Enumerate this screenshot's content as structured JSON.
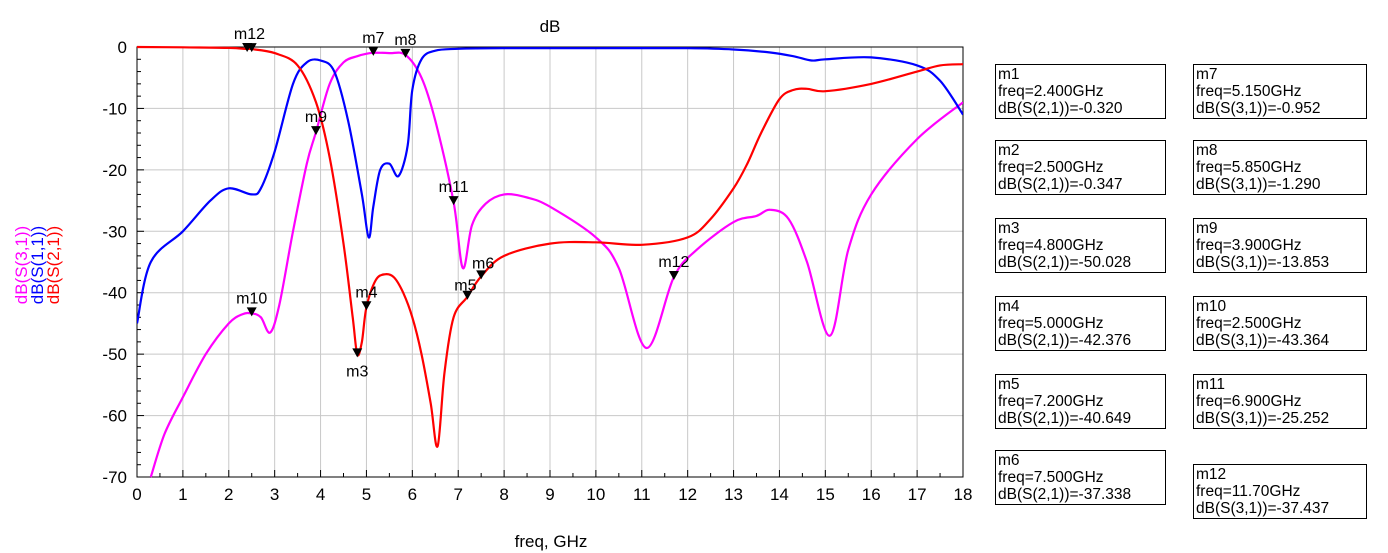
{
  "chart_data": {
    "type": "line",
    "title": "dB",
    "xlabel": "freq, GHz",
    "xlim": [
      0,
      18
    ],
    "ylim": [
      -70,
      0
    ],
    "xticks": [
      0,
      1,
      2,
      3,
      4,
      5,
      6,
      7,
      8,
      9,
      10,
      11,
      12,
      13,
      14,
      15,
      16,
      17,
      18
    ],
    "yticks": [
      0,
      -10,
      -20,
      -30,
      -40,
      -50,
      -60,
      -70
    ],
    "grid": true,
    "ylabels": [
      {
        "text": "dB(S(3,1))",
        "color": "#ff00ff"
      },
      {
        "text": "dB(S(1,1))",
        "color": "#0000ff"
      },
      {
        "text": "dB(S(2,1))",
        "color": "#ff0000"
      }
    ],
    "series": [
      {
        "name": "dB(S(2,1))",
        "color": "#ff0000",
        "x": [
          0,
          1,
          2,
          2.4,
          2.5,
          3,
          3.5,
          3.9,
          4.2,
          4.5,
          4.7,
          4.8,
          4.9,
          5,
          5.2,
          5.4,
          5.6,
          5.8,
          6.0,
          6.2,
          6.4,
          6.55,
          6.7,
          6.9,
          7.2,
          7.5,
          8,
          9,
          10,
          11,
          12,
          12.5,
          13,
          13.3,
          13.6,
          14,
          14.3,
          14.6,
          15,
          16,
          17,
          17.5,
          18
        ],
        "y": [
          0,
          -0.05,
          -0.15,
          -0.32,
          -0.347,
          -1,
          -3,
          -9,
          -18,
          -32,
          -44,
          -50.028,
          -48,
          -42.376,
          -38,
          -37,
          -37.5,
          -40,
          -44,
          -50,
          -58,
          -65,
          -53,
          -44,
          -40.649,
          -37.338,
          -34,
          -32,
          -31.8,
          -32.2,
          -31,
          -28,
          -23,
          -19,
          -14,
          -8.5,
          -7,
          -6.8,
          -7.2,
          -6,
          -4,
          -3,
          -2.8
        ]
      },
      {
        "name": "dB(S(1,1))",
        "color": "#0000ff",
        "x": [
          0,
          0.3,
          1,
          1.6,
          2,
          2.5,
          2.7,
          3.0,
          3.4,
          3.7,
          4.0,
          4.3,
          4.6,
          4.9,
          5.05,
          5.15,
          5.3,
          5.5,
          5.7,
          5.9,
          6.0,
          6.2,
          6.5,
          7,
          8,
          10,
          12,
          13,
          13.8,
          14.3,
          14.7,
          15,
          16,
          17,
          17.5,
          18
        ],
        "y": [
          -45,
          -35,
          -30,
          -25,
          -23,
          -24,
          -23,
          -17,
          -6,
          -2.5,
          -2.2,
          -4,
          -12,
          -24,
          -31,
          -26,
          -20,
          -19,
          -21,
          -16,
          -7,
          -2,
          -0.6,
          -0.3,
          -0.2,
          -0.2,
          -0.2,
          -0.4,
          -0.9,
          -1.5,
          -2.2,
          -2,
          -1.7,
          -3,
          -5.5,
          -11
        ]
      },
      {
        "name": "dB(S(3,1))",
        "color": "#ff00ff",
        "x": [
          0.3,
          0.6,
          1,
          1.5,
          2,
          2.3,
          2.5,
          2.7,
          2.9,
          3.1,
          3.4,
          3.7,
          3.9,
          4.2,
          4.5,
          4.8,
          5,
          5.15,
          5.5,
          5.85,
          6.2,
          6.5,
          6.9,
          7.1,
          7.3,
          7.6,
          8,
          8.5,
          9,
          10,
          10.5,
          11.1,
          11.7,
          12.2,
          13,
          13.5,
          13.8,
          14.2,
          14.6,
          15.1,
          15.5,
          16,
          17,
          18
        ],
        "y": [
          -70,
          -63,
          -57,
          -50,
          -45,
          -43.5,
          -43.364,
          -44,
          -46.5,
          -42,
          -30,
          -19,
          -13.853,
          -6,
          -2.5,
          -1.5,
          -1.1,
          -0.952,
          -1.0,
          -1.29,
          -5,
          -12,
          -25.252,
          -36,
          -29,
          -25.5,
          -24,
          -24.5,
          -26,
          -31,
          -36,
          -49,
          -37.437,
          -33,
          -28.5,
          -27.5,
          -26.5,
          -28,
          -35,
          -47,
          -33,
          -24,
          -15,
          -9
        ]
      }
    ],
    "markers": [
      {
        "name": "m1",
        "x": 2.4,
        "y": -0.32
      },
      {
        "name": "m2",
        "x": 2.5,
        "y": -0.347
      },
      {
        "name": "m3",
        "x": 4.8,
        "y": -50.028
      },
      {
        "name": "m4",
        "x": 5.0,
        "y": -42.376
      },
      {
        "name": "m5",
        "x": 7.2,
        "y": -40.649
      },
      {
        "name": "m6",
        "x": 7.5,
        "y": -37.338
      },
      {
        "name": "m7",
        "x": 5.15,
        "y": -0.952
      },
      {
        "name": "m8",
        "x": 5.85,
        "y": -1.29
      },
      {
        "name": "m9",
        "x": 3.9,
        "y": -13.853
      },
      {
        "name": "m10",
        "x": 2.5,
        "y": -43.364
      },
      {
        "name": "m11",
        "x": 6.9,
        "y": -25.252
      },
      {
        "name": "m12",
        "x": 11.7,
        "y": -37.437
      }
    ],
    "marker_labels": [
      {
        "text": "m12",
        "for": [
          "m1",
          "m2"
        ]
      },
      {
        "text": "m3",
        "for": [
          "m3"
        ]
      },
      {
        "text": "m4",
        "for": [
          "m4"
        ]
      },
      {
        "text": "m5",
        "for": [
          "m5"
        ]
      },
      {
        "text": "m6",
        "for": [
          "m6"
        ]
      },
      {
        "text": "m7",
        "for": [
          "m7"
        ]
      },
      {
        "text": "m8",
        "for": [
          "m8"
        ]
      },
      {
        "text": "m9",
        "for": [
          "m9"
        ]
      },
      {
        "text": "m10",
        "for": [
          "m10"
        ]
      },
      {
        "text": "m11",
        "for": [
          "m11"
        ]
      },
      {
        "text": "m12",
        "for": [
          "m12"
        ]
      }
    ],
    "marker_boxes": [
      {
        "title": "m1",
        "freq": "freq=2.400GHz",
        "value": "dB(S(2,1))=-0.320"
      },
      {
        "title": "m2",
        "freq": "freq=2.500GHz",
        "value": "dB(S(2,1))=-0.347"
      },
      {
        "title": "m3",
        "freq": "freq=4.800GHz",
        "value": "dB(S(2,1))=-50.028"
      },
      {
        "title": "m4",
        "freq": "freq=5.000GHz",
        "value": "dB(S(2,1))=-42.376"
      },
      {
        "title": "m5",
        "freq": "freq=7.200GHz",
        "value": "dB(S(2,1))=-40.649"
      },
      {
        "title": "m6",
        "freq": "freq=7.500GHz",
        "value": "dB(S(2,1))=-37.338"
      },
      {
        "title": "m7",
        "freq": "freq=5.150GHz",
        "value": "dB(S(3,1))=-0.952"
      },
      {
        "title": "m8",
        "freq": "freq=5.850GHz",
        "value": "dB(S(3,1))=-1.290"
      },
      {
        "title": "m9",
        "freq": "freq=3.900GHz",
        "value": "dB(S(3,1))=-13.853"
      },
      {
        "title": "m10",
        "freq": "freq=2.500GHz",
        "value": "dB(S(3,1))=-43.364"
      },
      {
        "title": "m11",
        "freq": "freq=6.900GHz",
        "value": "dB(S(3,1))=-25.252"
      },
      {
        "title": "m12",
        "freq": "freq=11.70GHz",
        "value": "dB(S(3,1))=-37.437"
      }
    ]
  }
}
